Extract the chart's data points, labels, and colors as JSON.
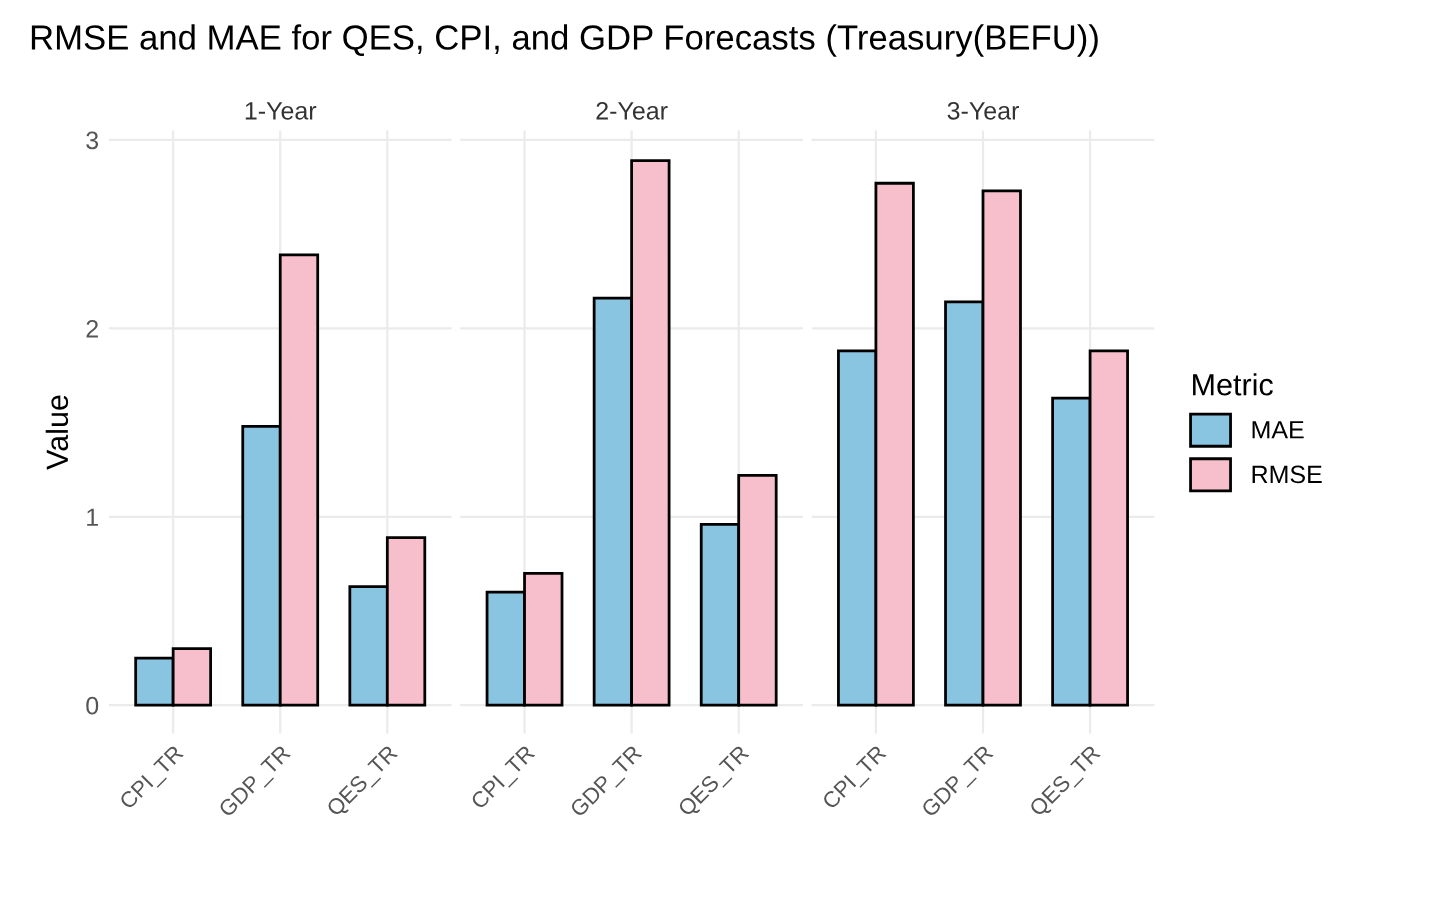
{
  "chart_data": [
    {
      "type": "bar",
      "title": "RMSE and MAE for QES, CPI, and GDP Forecasts (Treasury(BEFU))",
      "subtitle": "1-Year",
      "ylabel": "Value",
      "categories": [
        "CPI_TR",
        "GDP_TR",
        "QES_TR"
      ],
      "series": [
        {
          "color": "#89c4e1",
          "values": [
            0.25,
            1.48,
            0.63
          ]
        },
        {
          "color": "#f7bfcc",
          "values": [
            0.3,
            2.39,
            0.89
          ]
        }
      ],
      "ylim": [
        -0.15,
        3.05
      ],
      "yticks": [
        0,
        1,
        2,
        3
      ],
      "grid": true
    },
    {
      "type": "bar",
      "subtitle": "2-Year",
      "categories": [
        "CPI_TR",
        "GDP_TR",
        "QES_TR"
      ],
      "series": [
        {
          "color": "#89c4e1",
          "values": [
            0.6,
            2.16,
            0.96
          ]
        },
        {
          "color": "#f7bfcc",
          "values": [
            0.7,
            2.89,
            1.22
          ]
        }
      ],
      "ylim": [
        -0.15,
        3.05
      ],
      "yticks": [
        0,
        1,
        2,
        3
      ],
      "grid": true,
      "tick_labels": "x"
    },
    {
      "type": "bar",
      "subtitle": "3-Year",
      "legend_title": "Metric",
      "categories": [
        "CPI_TR",
        "GDP_TR",
        "QES_TR"
      ],
      "series": [
        {
          "name": "MAE",
          "color": "#89c4e1",
          "values": [
            1.88,
            2.14,
            1.63
          ]
        },
        {
          "name": "RMSE",
          "color": "#f7bfcc",
          "values": [
            2.77,
            2.73,
            1.88
          ]
        }
      ],
      "ylim": [
        -0.15,
        3.05
      ],
      "yticks": [
        0,
        1,
        2,
        3
      ],
      "grid": true,
      "legend": "right",
      "tick_labels": "x"
    }
  ]
}
